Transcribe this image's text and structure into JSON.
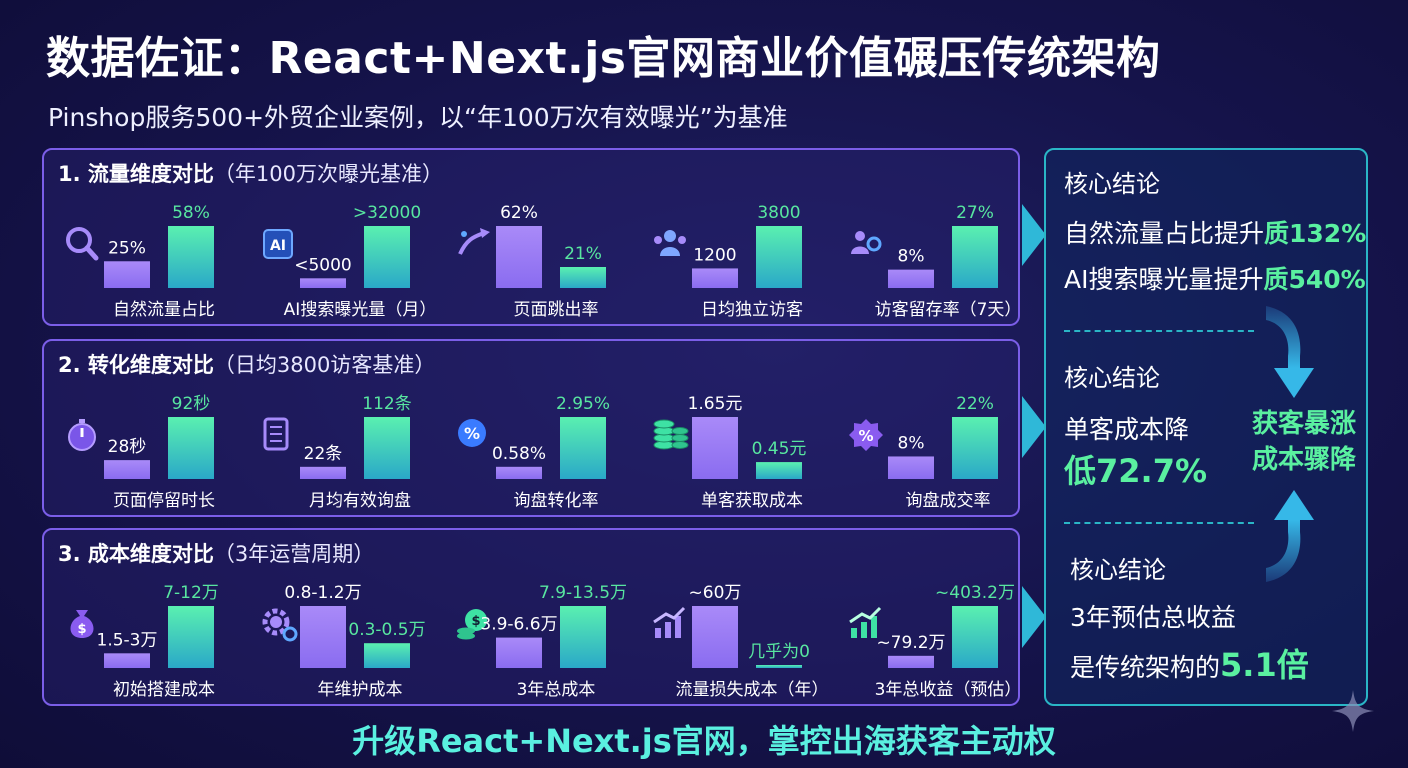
{
  "page": {
    "title": "数据佐证：React+Next.js官网商业价值碾压传统架构",
    "subtitle": "Pinshop服务500+外贸企业案例，以“年100万次有效曝光”为基准",
    "banner": "升级React+Next.js官网，掌控出海获客主动权"
  },
  "colors": {
    "traditional_bar": "#8a6cf0",
    "nextjs_bar": "#3ee2a4",
    "panel_border": "#7b5ee8",
    "conclusion_border": "#2ab6c6",
    "accent_green": "#5af0a0",
    "background": "#15134a"
  },
  "chart_data": [
    {
      "type": "bar",
      "heading": "1. 流量维度对比",
      "heading_note": "（年100万次曝光基准）",
      "metrics": [
        {
          "label": "自然流量占比",
          "icon": "magnifier-icon",
          "a_label": "25%",
          "b_label": "58%",
          "a": 25,
          "b": 58
        },
        {
          "label": "AI搜索曝光量（月）",
          "icon": "ai-chip-icon",
          "a_label": "<5000",
          "b_label": ">32000",
          "a": 5000,
          "b": 32000
        },
        {
          "label": "页面跳出率",
          "icon": "bounce-arrow-icon",
          "a_label": "62%",
          "b_label": "21%",
          "a": 62,
          "b": 21
        },
        {
          "label": "日均独立访客",
          "icon": "visitors-icon",
          "a_label": "1200",
          "b_label": "3800",
          "a": 1200,
          "b": 3800
        },
        {
          "label": "访客留存率（7天）",
          "icon": "retention-users-icon",
          "a_label": "8%",
          "b_label": "27%",
          "a": 8,
          "b": 27
        }
      ]
    },
    {
      "type": "bar",
      "heading": "2. 转化维度对比",
      "heading_note": "（日均3800访客基准）",
      "metrics": [
        {
          "label": "页面停留时长",
          "icon": "stopwatch-icon",
          "a_label": "28秒",
          "b_label": "92秒",
          "a": 28,
          "b": 92
        },
        {
          "label": "月均有效询盘",
          "icon": "inquiry-document-icon",
          "a_label": "22条",
          "b_label": "112条",
          "a": 22,
          "b": 112
        },
        {
          "label": "询盘转化率",
          "icon": "percent-coin-icon",
          "a_label": "0.58%",
          "b_label": "2.95%",
          "a": 0.58,
          "b": 2.95
        },
        {
          "label": "单客获取成本",
          "icon": "coin-stack-icon",
          "a_label": "1.65元",
          "b_label": "0.45元",
          "a": 1.65,
          "b": 0.45
        },
        {
          "label": "询盘成交率",
          "icon": "discount-badge-icon",
          "a_label": "8%",
          "b_label": "22%",
          "a": 8,
          "b": 22
        }
      ]
    },
    {
      "type": "bar",
      "heading": "3. 成本维度对比",
      "heading_note": "（3年运营周期）",
      "metrics": [
        {
          "label": "初始搭建成本",
          "icon": "money-bag-icon",
          "a_label": "1.5-3万",
          "b_label": "7-12万",
          "a": 2.25,
          "b": 9.5
        },
        {
          "label": "年维护成本",
          "icon": "gear-dollar-icon",
          "a_label": "0.8-1.2万",
          "b_label": "0.3-0.5万",
          "a": 1.0,
          "b": 0.4
        },
        {
          "label": "3年总成本",
          "icon": "coin-stack-dollar-icon",
          "a_label": "3.9-6.6万",
          "b_label": "7.9-13.5万",
          "a": 5.25,
          "b": 10.7
        },
        {
          "label": "流量损失成本（年）",
          "icon": "rising-bars-icon",
          "a_label": "~60万",
          "b_label": "几乎为0",
          "a": 60,
          "b": 0
        },
        {
          "label": "3年总收益（预估）",
          "icon": "growth-chart-icon",
          "a_label": "~79.2万",
          "b_label": "~403.2万",
          "a": 79.2,
          "b": 403.2
        }
      ]
    }
  ],
  "conclusions": {
    "caption": "核心结论",
    "block1": {
      "line1_text": "自然流量占比提升",
      "line1_value": "质132%",
      "line2_text": "AI搜索曝光量提升",
      "line2_value": "质540%"
    },
    "block2": {
      "line1": "单客成本降",
      "line2": "低72.7%",
      "side_line1": "获客暴涨",
      "side_line2": "成本骤降"
    },
    "block3": {
      "line1": "3年预估总收益",
      "line2_text": "是传统架构的",
      "line2_value": "5.1倍"
    }
  }
}
